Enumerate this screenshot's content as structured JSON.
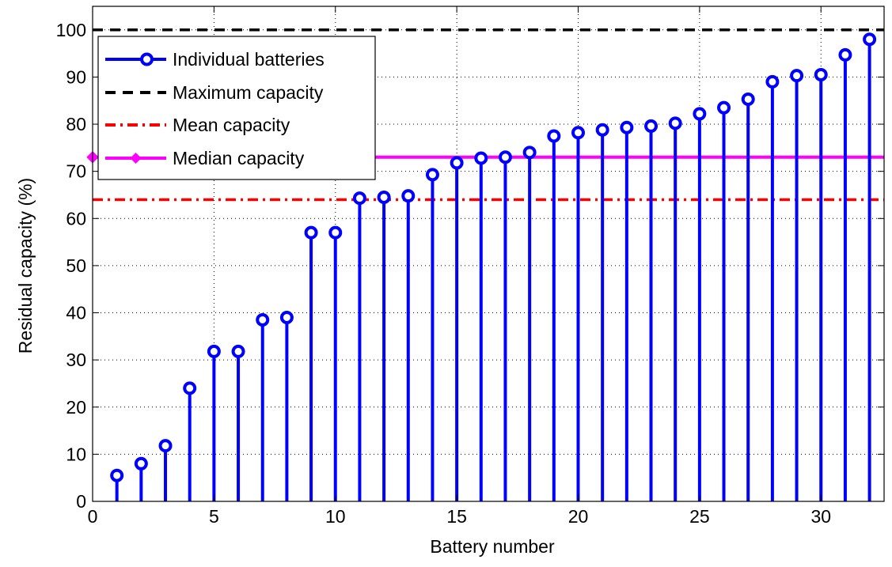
{
  "chart_data": {
    "type": "stem",
    "xlabel": "Battery number",
    "ylabel": "Residual capacity (%)",
    "xlim": [
      0,
      32.6
    ],
    "ylim": [
      0,
      105
    ],
    "xticks": [
      0,
      5,
      10,
      15,
      20,
      25,
      30
    ],
    "yticks": [
      0,
      10,
      20,
      30,
      40,
      50,
      60,
      70,
      80,
      90,
      100
    ],
    "grid": true,
    "legend_position": "top-left",
    "series": [
      {
        "name": "Individual batteries",
        "color": "#0000ff",
        "marker": "circle",
        "x": [
          1,
          2,
          3,
          4,
          5,
          6,
          7,
          8,
          9,
          10,
          11,
          12,
          13,
          14,
          15,
          16,
          17,
          18,
          19,
          20,
          21,
          22,
          23,
          24,
          25,
          26,
          27,
          28,
          29,
          30,
          31,
          32
        ],
        "values": [
          5.5,
          8,
          11.8,
          24,
          31.8,
          31.8,
          38.5,
          39,
          57,
          57,
          64.3,
          64.5,
          64.8,
          69.3,
          71.8,
          72.8,
          73,
          74,
          77.5,
          78.2,
          78.8,
          79.3,
          79.6,
          80.2,
          82.2,
          83.5,
          85.3,
          89,
          90.3,
          90.5,
          94.7,
          98
        ]
      },
      {
        "name": "Maximum capacity",
        "color": "#000000",
        "style": "dashed",
        "value": 100
      },
      {
        "name": "Mean capacity",
        "color": "#ff0000",
        "style": "dash-dot",
        "value": 64
      },
      {
        "name": "Median capacity",
        "color": "#ff00ff",
        "style": "solid",
        "marker": "diamond",
        "value": 73
      }
    ]
  }
}
